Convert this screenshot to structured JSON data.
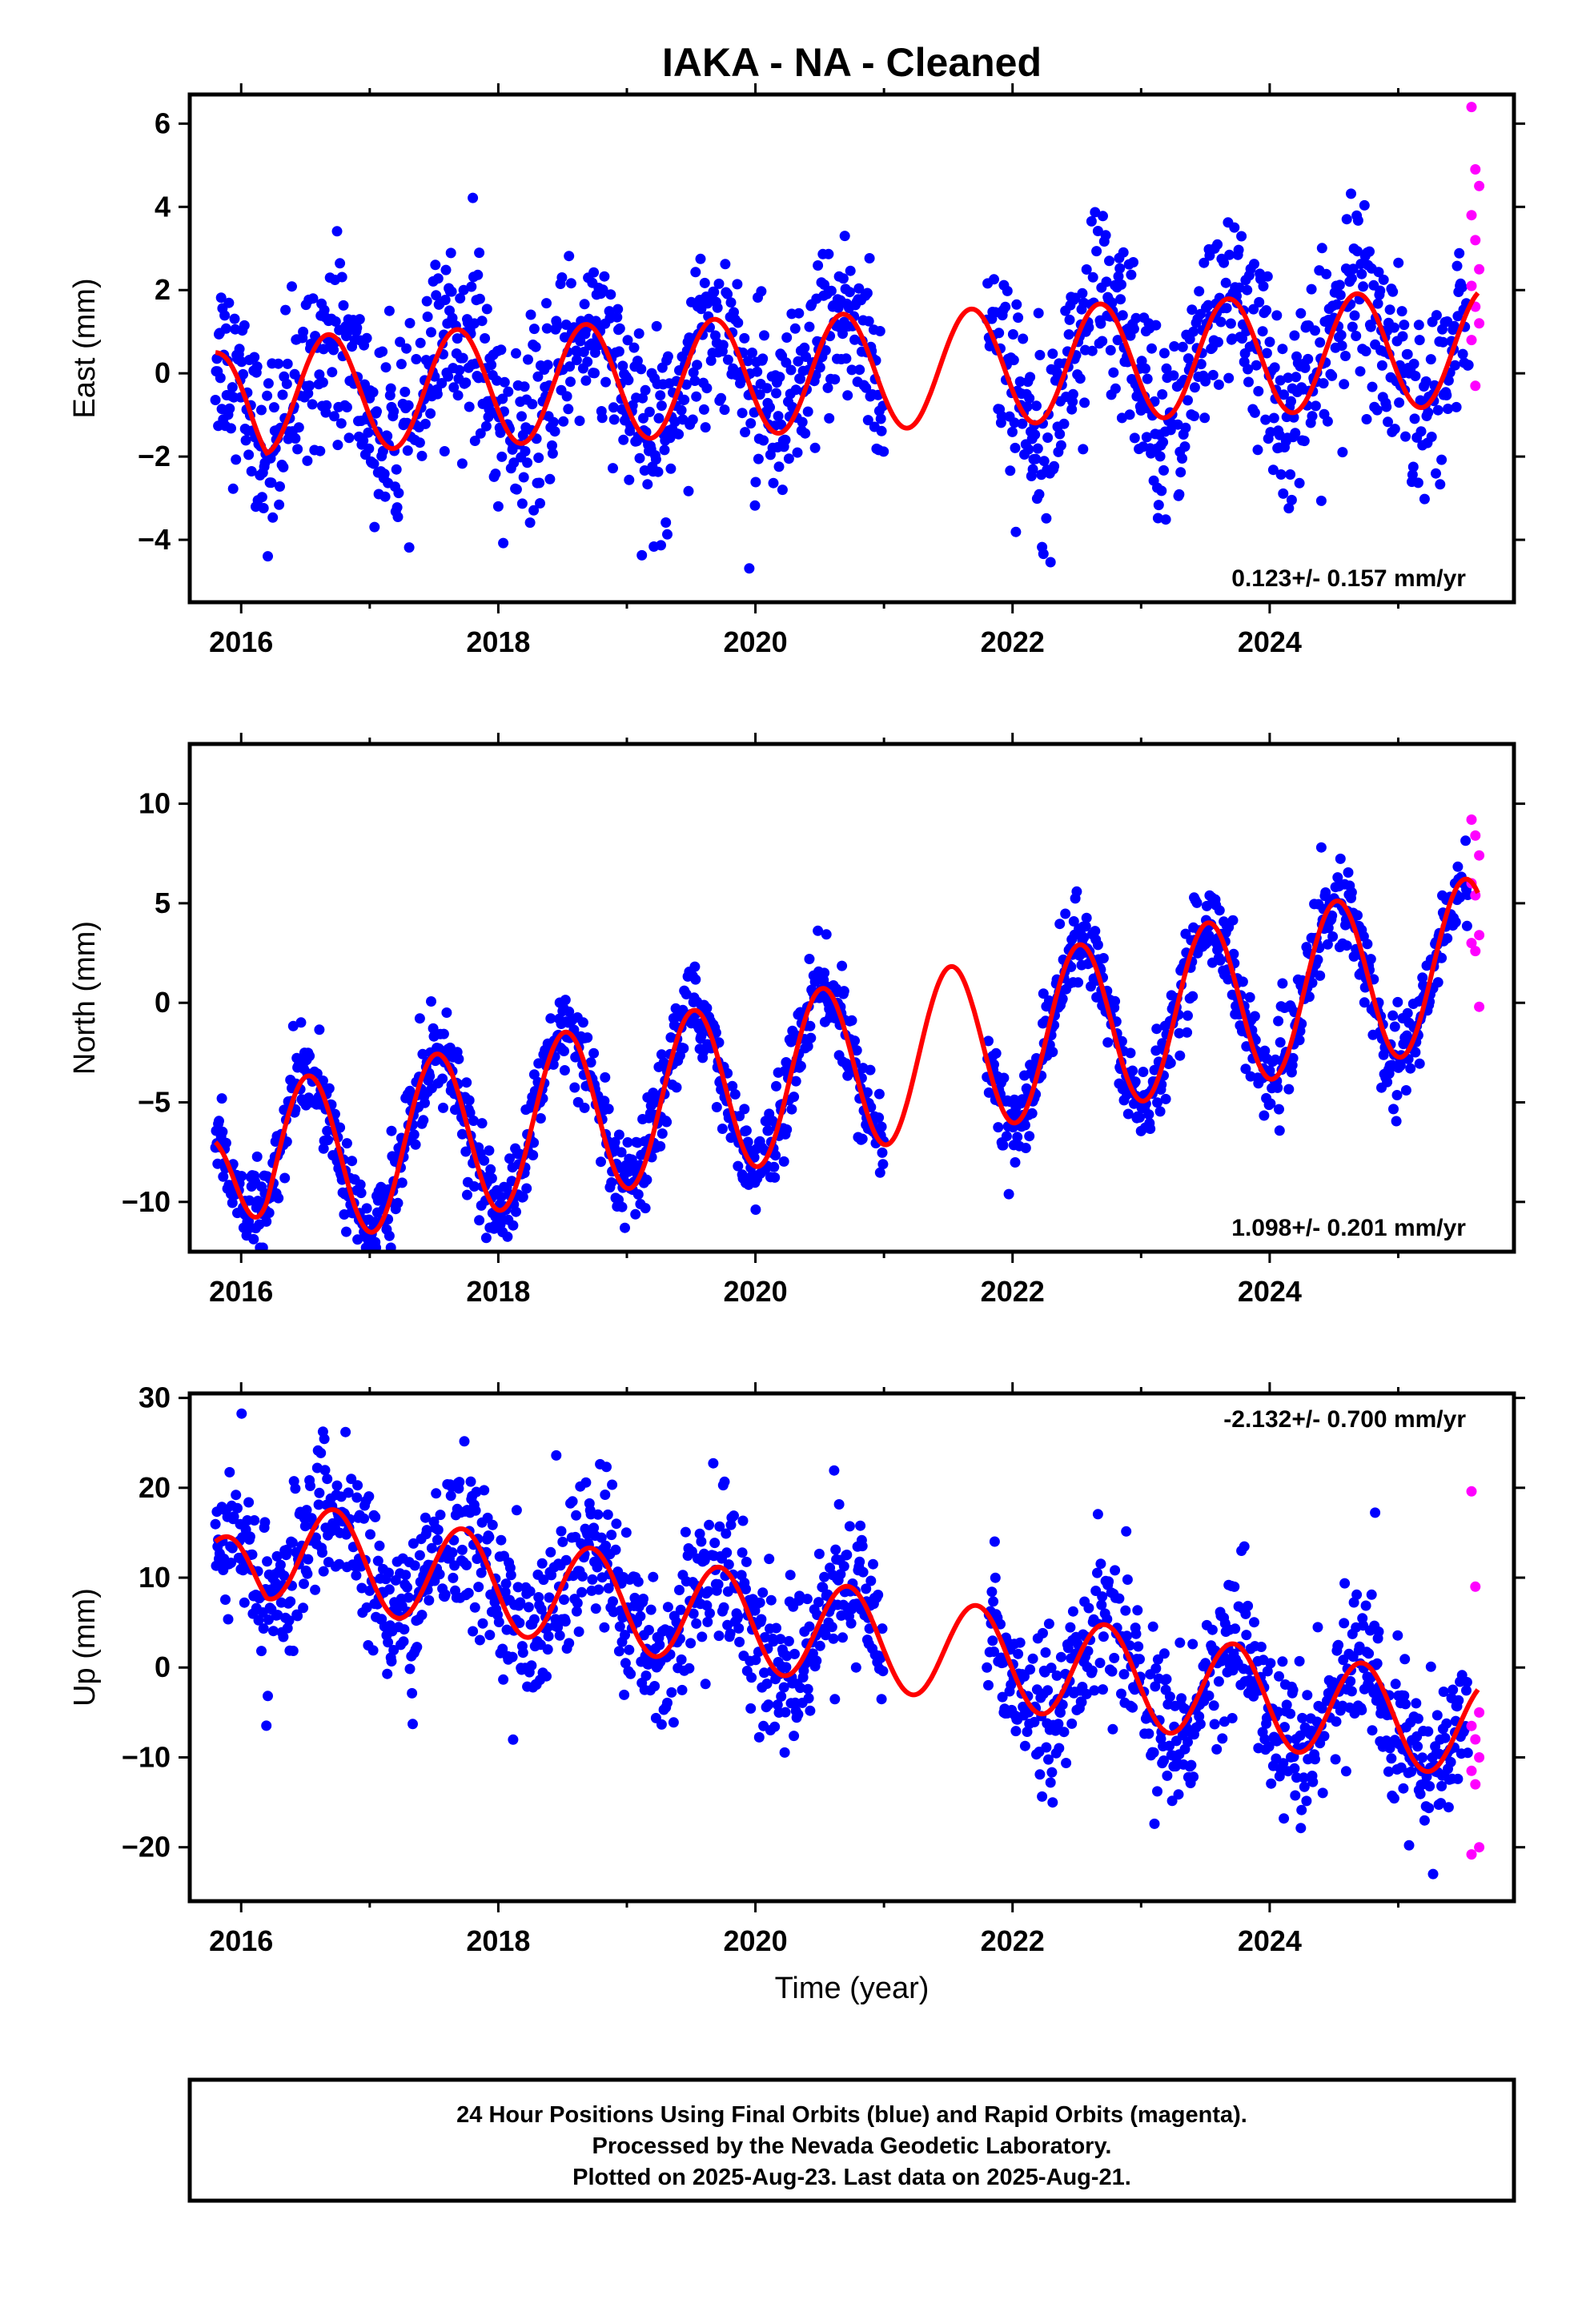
{
  "title": "IAKA  - NA - Cleaned",
  "xlabel": "Time (year)",
  "footer": {
    "line1": "24 Hour Positions Using Final Orbits (blue) and Rapid Orbits (magenta).",
    "line2": "Processed by the Nevada Geodetic Laboratory.",
    "line3": "Plotted on 2025-Aug-23. Last data on 2025-Aug-21."
  },
  "colors": {
    "final": "#0000ff",
    "rapid": "#ff00ff",
    "model": "#ff0000"
  },
  "chart_data": [
    {
      "type": "scatter",
      "ylabel": "East (mm)",
      "rate": "0.123+/- 0.157 mm/yr",
      "rate_position": "bottom-right",
      "xlim": [
        2015.6,
        2025.9
      ],
      "ylim": [
        -5.5,
        6.7
      ],
      "xticks": [
        2016,
        2018,
        2020,
        2022,
        2024
      ],
      "yticks": [
        -4,
        -2,
        0,
        2,
        4,
        6
      ],
      "model": {
        "offset": 0.0,
        "trend": 0.123,
        "annual_amp": 1.4,
        "peak_phase": 0.68,
        "start_value": 0.5
      },
      "final_gaps": [
        [
          2021.0,
          2021.8
        ]
      ],
      "final_range": [
        2015.8,
        2025.55
      ],
      "final_scatter_mm": 1.1,
      "rapid": {
        "x_range": [
          2025.57,
          2025.63
        ],
        "values": [
          6.4,
          4.9,
          4.5,
          3.8,
          3.2,
          2.5,
          2.1,
          1.6,
          1.2,
          0.8,
          -0.3
        ]
      }
    },
    {
      "type": "scatter",
      "ylabel": "North (mm)",
      "rate": "1.098+/- 0.201 mm/yr",
      "rate_position": "bottom-right",
      "xlim": [
        2015.6,
        2025.9
      ],
      "ylim": [
        -12.5,
        13.0
      ],
      "xticks": [
        2016,
        2018,
        2020,
        2022,
        2024
      ],
      "yticks": [
        -10,
        -5,
        0,
        5,
        10
      ],
      "model": {
        "offset": -3.5,
        "trend": 1.098,
        "annual_amp": 4.2,
        "peak_phase": 0.52,
        "start_value": -7.0
      },
      "final_gaps": [
        [
          2021.0,
          2021.8
        ]
      ],
      "final_range": [
        2015.8,
        2025.55
      ],
      "final_scatter_mm": 1.1,
      "rapid": {
        "x_range": [
          2025.57,
          2025.63
        ],
        "values": [
          9.2,
          8.4,
          7.4,
          6.0,
          5.4,
          3.4,
          3.0,
          2.6,
          -0.2
        ]
      }
    },
    {
      "type": "scatter",
      "ylabel": "Up (mm)",
      "rate": "-2.132+/- 0.700 mm/yr",
      "rate_position": "top-right",
      "xlim": [
        2015.6,
        2025.9
      ],
      "ylim": [
        -26.0,
        30.5
      ],
      "xticks": [
        2016,
        2018,
        2020,
        2022,
        2024
      ],
      "yticks": [
        -20,
        -10,
        0,
        10,
        20,
        30
      ],
      "model": {
        "offset": 4.0,
        "trend": -2.132,
        "annual_amp": 5.5,
        "peak_phase": 0.72,
        "start_value": 14.0
      },
      "final_gaps": [
        [
          2021.0,
          2021.8
        ]
      ],
      "final_range": [
        2015.8,
        2025.55
      ],
      "final_scatter_mm": 4.2,
      "rapid": {
        "x_range": [
          2025.57,
          2025.63
        ],
        "values": [
          19.6,
          9.0,
          -5.0,
          -6.5,
          -8.0,
          -10.0,
          -11.5,
          -13.0,
          -20.0,
          -20.8
        ]
      }
    }
  ]
}
